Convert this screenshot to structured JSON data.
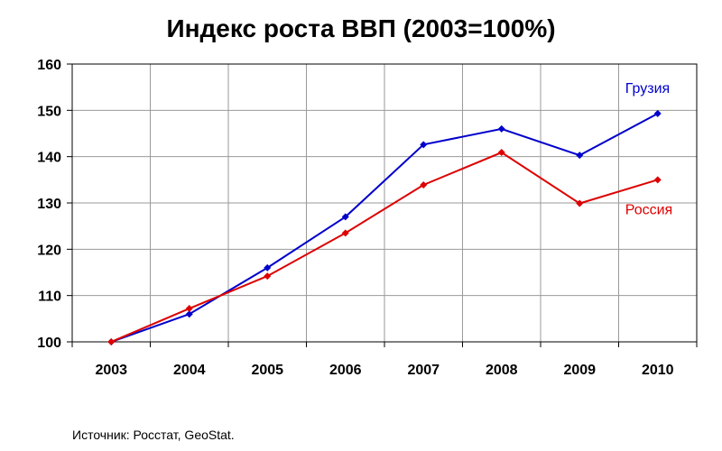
{
  "chart_data": {
    "type": "line",
    "title": "Индекс роста ВВП (2003=100%)",
    "xlabel": "",
    "ylabel": "",
    "categories": [
      "2003",
      "2004",
      "2005",
      "2006",
      "2007",
      "2008",
      "2009",
      "2010"
    ],
    "ylim": [
      100,
      160
    ],
    "yticks": [
      100,
      110,
      120,
      130,
      140,
      150,
      160
    ],
    "grid": true,
    "series": [
      {
        "name": "Грузия",
        "color": "#0000cc",
        "values": [
          100,
          106,
          116,
          127,
          142.6,
          146,
          140.3,
          149.3
        ]
      },
      {
        "name": "Россия",
        "color": "#dd0000",
        "values": [
          100,
          107.2,
          114.2,
          123.5,
          133.9,
          140.9,
          129.9,
          135
        ]
      }
    ]
  },
  "footer": {
    "source": "Источник: Росстат, GeoStat."
  }
}
